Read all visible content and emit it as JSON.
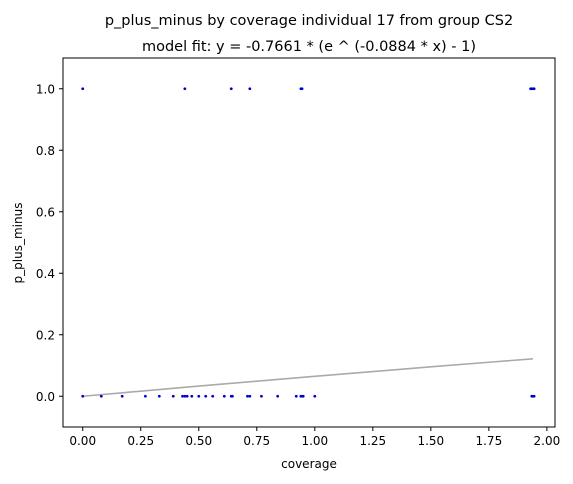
{
  "chart_data": {
    "type": "scatter",
    "title": "p_plus_minus by coverage individual 17 from group CS2",
    "subtitle": "model fit: y = -0.7661 * (e ^ (-0.0884 * x) - 1)",
    "xlabel": "coverage",
    "ylabel": "p_plus_minus",
    "xlim": [
      -0.085,
      2.035
    ],
    "ylim": [
      -0.1,
      1.1
    ],
    "xticks": [
      0.0,
      0.25,
      0.5,
      0.75,
      1.0,
      1.25,
      1.5,
      1.75,
      2.0
    ],
    "xtick_labels": [
      "0.00",
      "0.25",
      "0.50",
      "0.75",
      "1.00",
      "1.25",
      "1.50",
      "1.75",
      "2.00"
    ],
    "yticks": [
      0.0,
      0.2,
      0.4,
      0.6,
      0.8,
      1.0
    ],
    "ytick_labels": [
      "0.0",
      "0.2",
      "0.4",
      "0.6",
      "0.8",
      "1.0"
    ],
    "grid": false,
    "colors": {
      "points": "#0000cc",
      "fit_line": "#aaaaaa",
      "axes": "#000000"
    },
    "series": [
      {
        "type": "scatter",
        "x": [
          0.0,
          0.44,
          0.64,
          0.72,
          0.94,
          0.945,
          1.93,
          1.935,
          1.94,
          1.945,
          0.0,
          0.08,
          0.17,
          0.27,
          0.33,
          0.39,
          0.43,
          0.44,
          0.45,
          0.47,
          0.5,
          0.53,
          0.56,
          0.61,
          0.64,
          0.645,
          0.71,
          0.72,
          0.77,
          0.84,
          0.92,
          0.94,
          0.945,
          0.95,
          1.0,
          1.935,
          1.94,
          1.945
        ],
        "y": [
          1,
          1,
          1,
          1,
          1,
          1,
          1,
          1,
          1,
          1,
          0,
          0,
          0,
          0,
          0,
          0,
          0,
          0,
          0,
          0,
          0,
          0,
          0,
          0,
          0,
          0,
          0,
          0,
          0,
          0,
          0,
          0,
          0,
          0,
          0,
          0,
          0,
          0
        ]
      },
      {
        "type": "line",
        "x": [
          0.0,
          0.25,
          0.5,
          0.75,
          1.0,
          1.25,
          1.5,
          1.75,
          1.94
        ],
        "y": [
          0.0,
          0.0166,
          0.033,
          0.049,
          0.0648,
          0.0803,
          0.0956,
          0.1106,
          0.1218
        ]
      }
    ]
  }
}
